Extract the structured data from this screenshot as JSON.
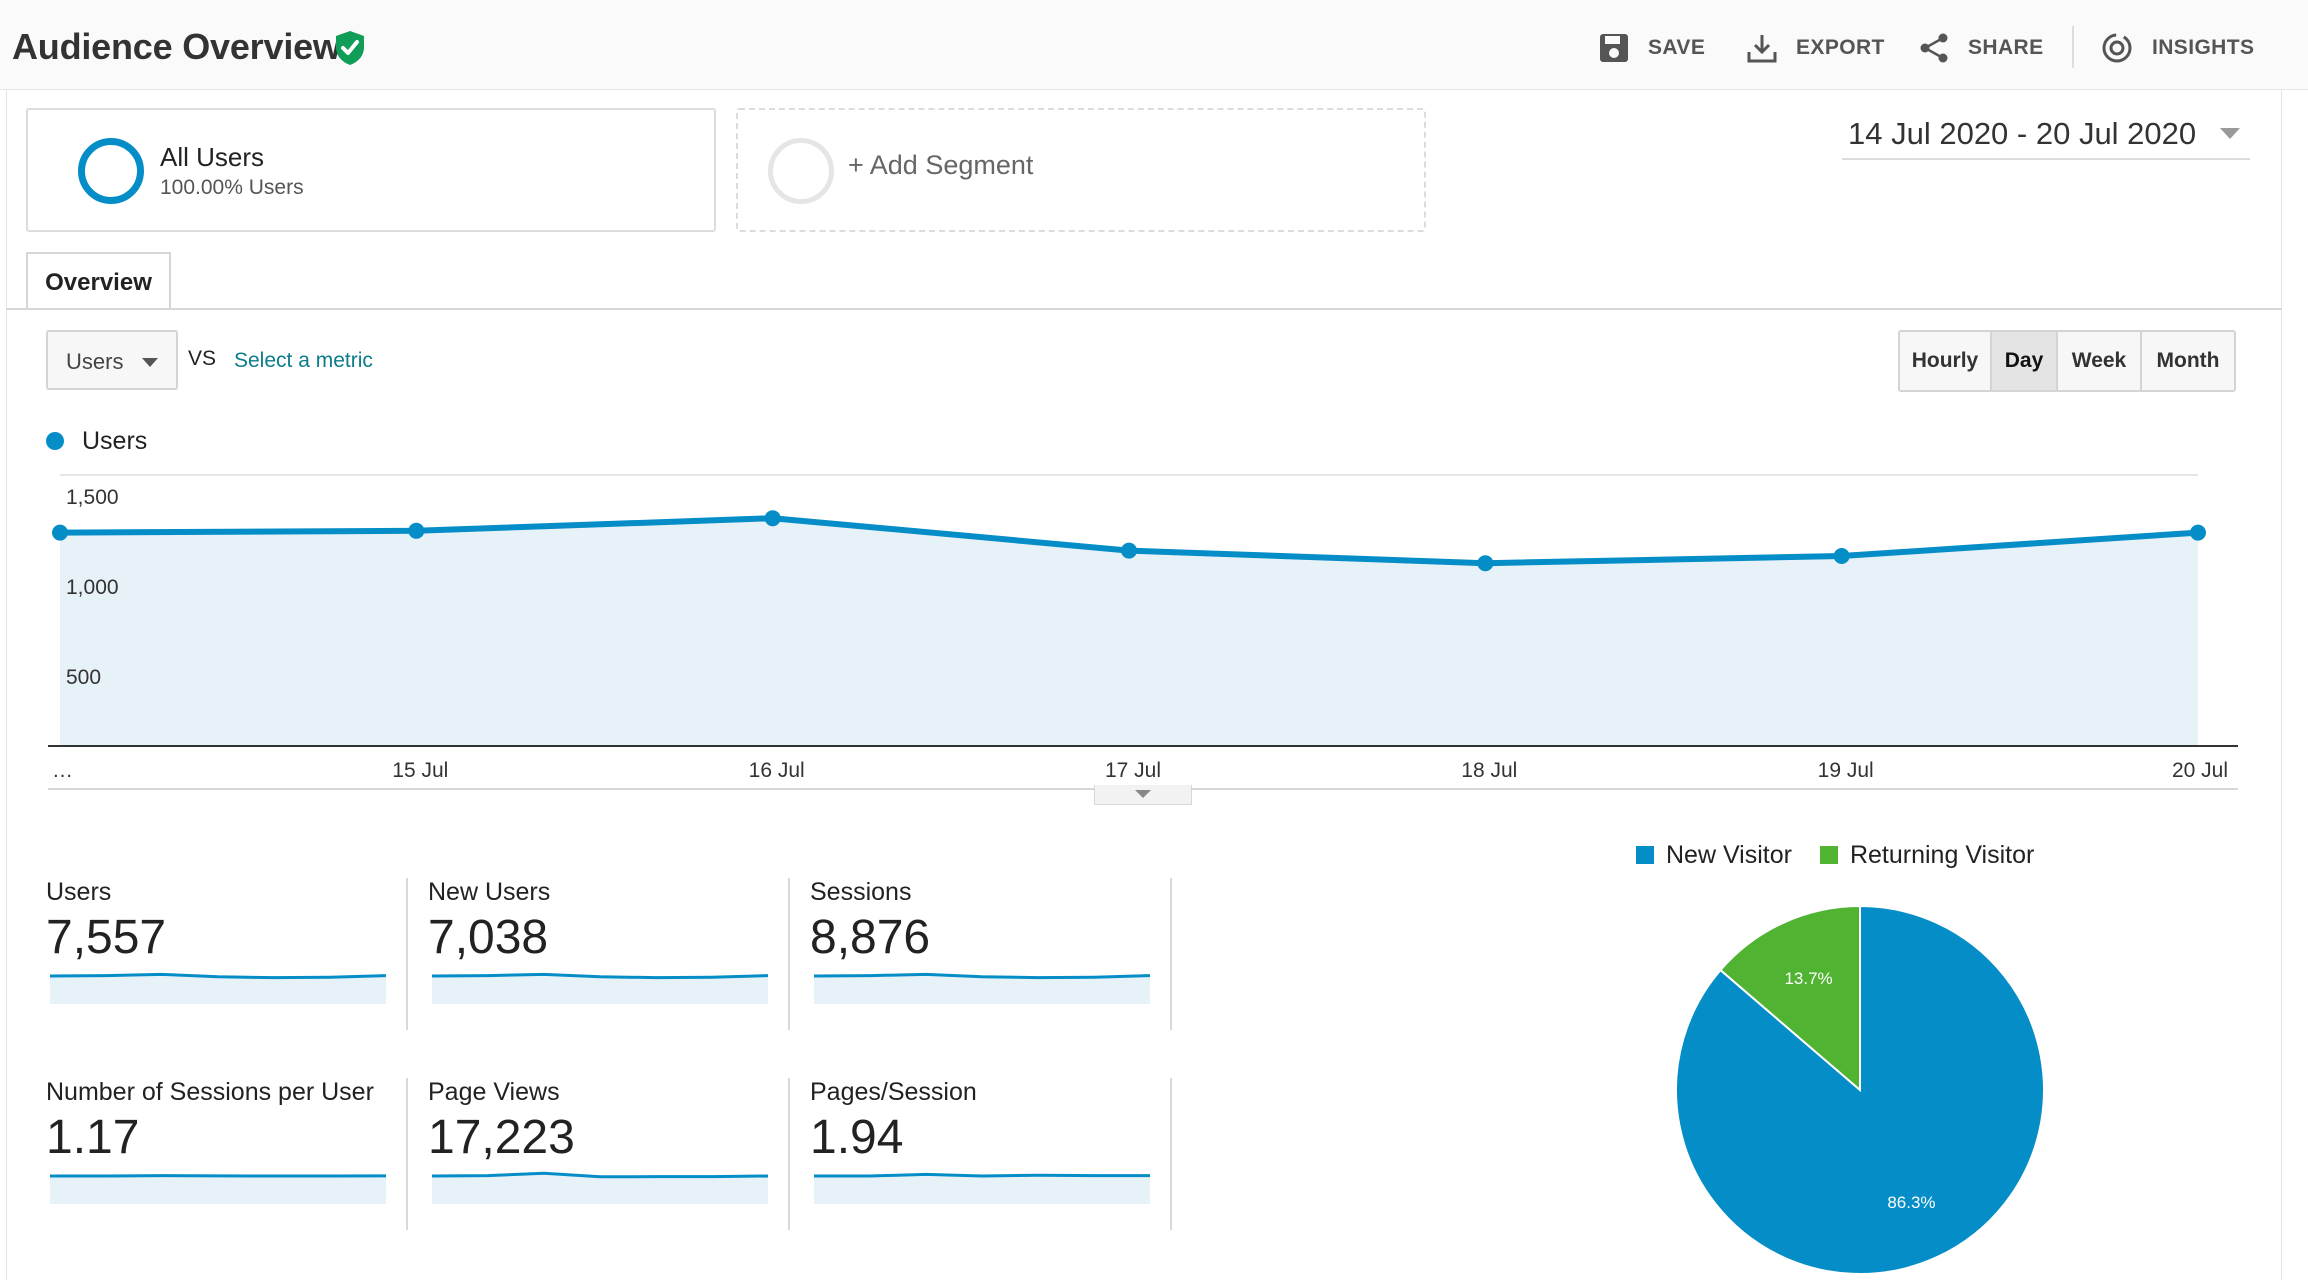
{
  "header": {
    "title": "Audience Overview",
    "actions": [
      {
        "label": "SAVE",
        "icon": "floppy-disk-icon"
      },
      {
        "label": "EXPORT",
        "icon": "download-icon"
      },
      {
        "label": "SHARE",
        "icon": "share-icon"
      },
      {
        "label": "INSIGHTS",
        "icon": "insights-icon"
      }
    ]
  },
  "segments": {
    "active": {
      "name": "All Users",
      "sub": "100.00% Users"
    },
    "add_label": "+ Add Segment"
  },
  "date_range": "14 Jul 2020 - 20 Jul 2020",
  "tabs": [
    "Overview"
  ],
  "metric_selector": {
    "value": "Users",
    "vs": "VS",
    "select_link": "Select a metric"
  },
  "granularity": {
    "options": [
      "Hourly",
      "Day",
      "Week",
      "Month"
    ],
    "selected": "Day"
  },
  "legend_label": "Users",
  "colors": {
    "primary": "#058dc7",
    "area": "#e6f1f8",
    "returning": "#50b432",
    "shield": "#0f9d58"
  },
  "chart_data": {
    "type": "area",
    "x": [
      "…",
      "15 Jul",
      "16 Jul",
      "17 Jul",
      "18 Jul",
      "19 Jul",
      "20 Jul"
    ],
    "series": [
      {
        "name": "Users",
        "values": [
          1180,
          1190,
          1260,
          1080,
          1010,
          1050,
          1180
        ]
      }
    ],
    "y_ticks": [
      "1,500",
      "1,000",
      "500"
    ],
    "ylim": [
      0,
      1500
    ],
    "grid": true
  },
  "metrics": [
    {
      "label": "Users",
      "value": "7,557",
      "spark": [
        0.5,
        0.55,
        0.7,
        0.4,
        0.3,
        0.35,
        0.55
      ]
    },
    {
      "label": "New Users",
      "value": "7,038",
      "spark": [
        0.5,
        0.55,
        0.7,
        0.4,
        0.3,
        0.35,
        0.55
      ]
    },
    {
      "label": "Sessions",
      "value": "8,876",
      "spark": [
        0.5,
        0.55,
        0.7,
        0.4,
        0.3,
        0.35,
        0.55
      ]
    },
    {
      "label": "Number of Sessions per User",
      "value": "1.17",
      "spark": [
        0.5,
        0.5,
        0.55,
        0.52,
        0.5,
        0.5,
        0.52
      ]
    },
    {
      "label": "Page Views",
      "value": "17,223",
      "spark": [
        0.5,
        0.55,
        0.85,
        0.4,
        0.42,
        0.42,
        0.5
      ]
    },
    {
      "label": "Pages/Session",
      "value": "1.94",
      "spark": [
        0.5,
        0.5,
        0.7,
        0.5,
        0.6,
        0.55,
        0.55
      ]
    }
  ],
  "pie": {
    "legend": [
      {
        "label": "New Visitor",
        "color": "#058dc7"
      },
      {
        "label": "Returning Visitor",
        "color": "#50b432"
      }
    ],
    "slices": [
      {
        "label": "New Visitor",
        "value": 86.3,
        "text": "86.3%",
        "color": "#058dc7"
      },
      {
        "label": "Returning Visitor",
        "value": 13.7,
        "text": "13.7%",
        "color": "#50b432"
      }
    ]
  }
}
